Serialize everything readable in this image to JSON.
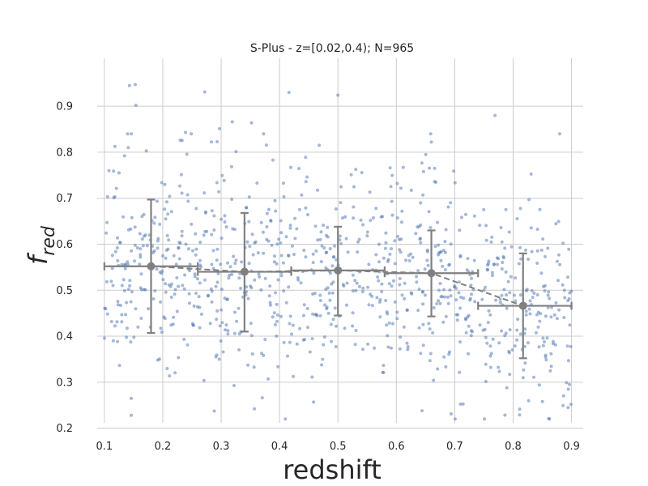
{
  "chart_data": {
    "type": "scatter",
    "title": "S-Plus - z=[0.02,0.4); N=965",
    "xlabel": "redshift",
    "ylabel_main": "f",
    "ylabel_sub": "red",
    "xlim": [
      0.06,
      0.92
    ],
    "ylim": [
      0.18,
      0.99
    ],
    "xticks": [
      "0.1",
      "0.2",
      "0.3",
      "0.4",
      "0.5",
      "0.6",
      "0.7",
      "0.8",
      "0.9"
    ],
    "yticks": [
      "0.2",
      "0.3",
      "0.4",
      "0.5",
      "0.6",
      "0.7",
      "0.8",
      "0.9"
    ],
    "grid": true,
    "scatter_color": "#4c72b0",
    "binned_color": "#808080",
    "binned": [
      {
        "x": 0.18,
        "y": 0.552,
        "xerr": [
          0.1,
          0.26
        ],
        "yerr": [
          0.407,
          0.697
        ]
      },
      {
        "x": 0.34,
        "y": 0.54,
        "xerr": [
          0.26,
          0.42
        ],
        "yerr": [
          0.41,
          0.668
        ]
      },
      {
        "x": 0.5,
        "y": 0.543,
        "xerr": [
          0.42,
          0.58
        ],
        "yerr": [
          0.445,
          0.638
        ]
      },
      {
        "x": 0.66,
        "y": 0.537,
        "xerr": [
          0.58,
          0.74
        ],
        "yerr": [
          0.443,
          0.63
        ]
      },
      {
        "x": 0.817,
        "y": 0.466,
        "xerr": [
          0.74,
          0.9
        ],
        "yerr": [
          0.352,
          0.58
        ]
      }
    ],
    "scatter_generation": {
      "n": 965,
      "seed": 7,
      "x_range": [
        0.1,
        0.9
      ],
      "std": 0.11
    },
    "outliers": [
      {
        "x": 0.143,
        "y": 0.945
      },
      {
        "x": 0.153,
        "y": 0.947
      },
      {
        "x": 0.154,
        "y": 0.902
      },
      {
        "x": 0.272,
        "y": 0.931
      },
      {
        "x": 0.416,
        "y": 0.93
      },
      {
        "x": 0.5,
        "y": 0.924
      },
      {
        "x": 0.769,
        "y": 0.88
      },
      {
        "x": 0.319,
        "y": 0.866
      },
      {
        "x": 0.352,
        "y": 0.864
      },
      {
        "x": 0.297,
        "y": 0.851
      },
      {
        "x": 0.66,
        "y": 0.822
      },
      {
        "x": 0.239,
        "y": 0.843
      },
      {
        "x": 0.141,
        "y": 0.81
      },
      {
        "x": 0.172,
        "y": 0.803
      },
      {
        "x": 0.23,
        "y": 0.826
      },
      {
        "x": 0.468,
        "y": 0.815
      },
      {
        "x": 0.146,
        "y": 0.228
      },
      {
        "x": 0.146,
        "y": 0.265
      },
      {
        "x": 0.357,
        "y": 0.242
      },
      {
        "x": 0.644,
        "y": 0.238
      },
      {
        "x": 0.861,
        "y": 0.221
      },
      {
        "x": 0.899,
        "y": 0.252
      },
      {
        "x": 0.894,
        "y": 0.245
      },
      {
        "x": 0.811,
        "y": 0.229
      }
    ]
  }
}
